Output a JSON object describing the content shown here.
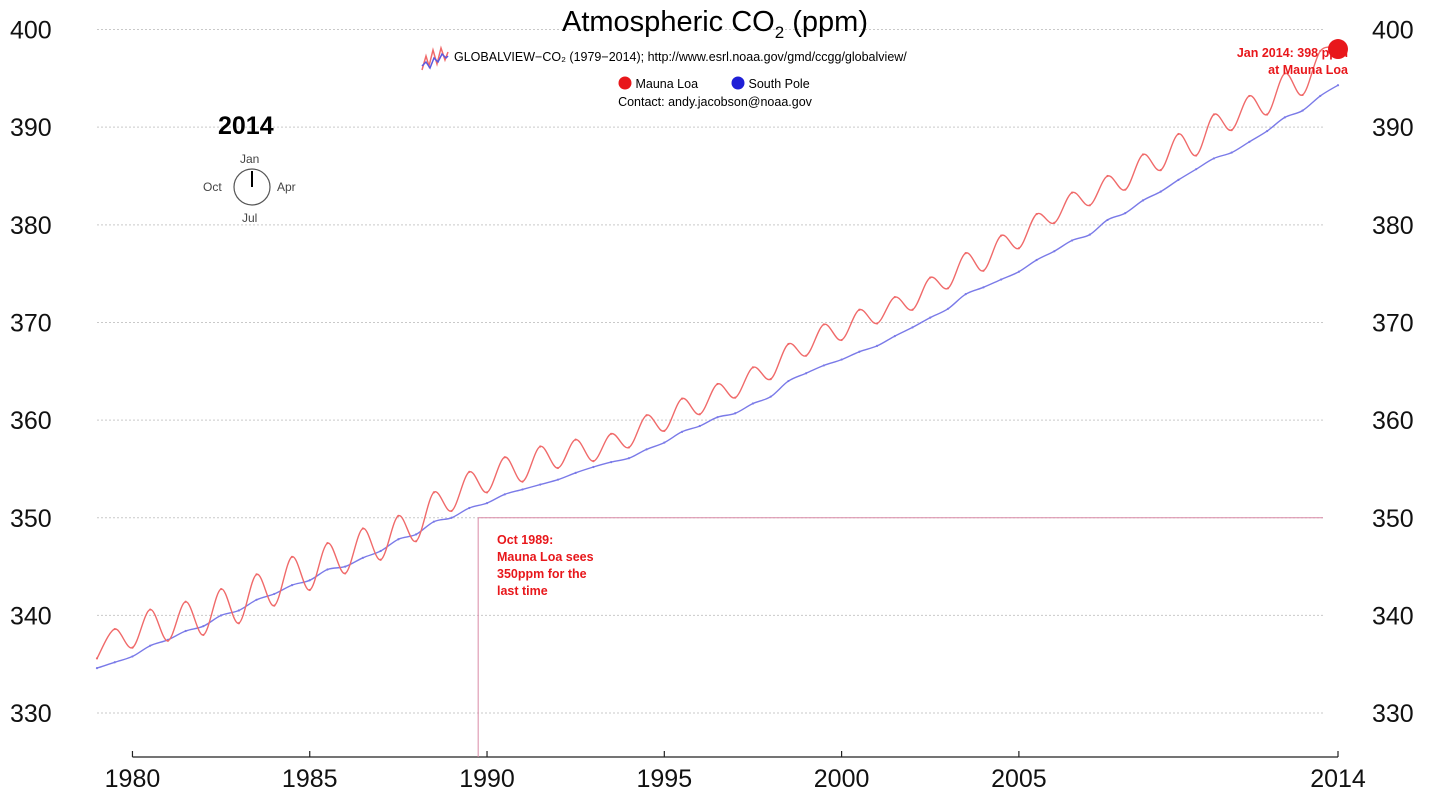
{
  "chart_data": {
    "type": "line",
    "title_prefix": "Atmospheric CO",
    "title_sub": "2",
    "title_suffix": " (ppm)",
    "credit": "GLOBALVIEW−CO₂ (1979−2014); http://www.esrl.noaa.gov/gmd/ccgg/globalview/",
    "contact": "Contact: andy.jacobson@noaa.gov",
    "current_year": "2014",
    "clock_labels": {
      "top": "Jan",
      "right": "Apr",
      "bottom": "Jul",
      "left": "Oct"
    },
    "xlim": [
      1979,
      2014
    ],
    "ylim": [
      325.5,
      402
    ],
    "x_ticks": [
      1980,
      1985,
      1990,
      1995,
      2000,
      2005,
      2014
    ],
    "x_tick_labels": [
      "1980",
      "1985",
      "1990",
      "1995",
      "2000",
      "2005",
      "2014"
    ],
    "y_ticks": [
      330,
      340,
      350,
      360,
      370,
      380,
      390,
      400
    ],
    "y_tick_labels": [
      "330",
      "340",
      "350",
      "360",
      "370",
      "380",
      "390",
      "400"
    ],
    "grid": true,
    "colors": {
      "mauna_loa": "#e8171b",
      "mauna_loa_line": "#f06a6a",
      "south_pole": "#1f1fd6",
      "south_pole_line": "#7a7ae8",
      "annotation": "#e8171b",
      "guide": "#d98aa6"
    },
    "series": [
      {
        "name": "Mauna Loa",
        "x": [
          1979.0,
          1979.5,
          1980.0,
          1980.5,
          1981.0,
          1981.5,
          1982.0,
          1982.5,
          1983.0,
          1983.5,
          1984.0,
          1984.5,
          1985.0,
          1985.5,
          1986.0,
          1986.5,
          1987.0,
          1987.5,
          1988.0,
          1988.5,
          1989.0,
          1989.5,
          1990.0,
          1990.5,
          1991.0,
          1991.5,
          1992.0,
          1992.5,
          1993.0,
          1993.5,
          1994.0,
          1994.5,
          1995.0,
          1995.5,
          1996.0,
          1996.5,
          1997.0,
          1997.5,
          1998.0,
          1998.5,
          1999.0,
          1999.5,
          2000.0,
          2000.5,
          2001.0,
          2001.5,
          2002.0,
          2002.5,
          2003.0,
          2003.5,
          2004.0,
          2004.5,
          2005.0,
          2005.5,
          2006.0,
          2006.5,
          2007.0,
          2007.5,
          2008.0,
          2008.5,
          2009.0,
          2009.5,
          2010.0,
          2010.5,
          2011.0,
          2011.5,
          2012.0,
          2012.5,
          2013.0,
          2013.5,
          2014.0
        ],
        "y": [
          335.6,
          338.6,
          336.7,
          340.6,
          337.4,
          341.4,
          338.0,
          342.7,
          339.2,
          344.2,
          341.0,
          346.0,
          342.6,
          347.4,
          344.3,
          348.9,
          345.7,
          350.2,
          347.6,
          352.6,
          350.7,
          354.7,
          352.6,
          356.2,
          353.7,
          357.3,
          355.1,
          358.0,
          355.8,
          358.6,
          357.2,
          360.5,
          358.9,
          362.2,
          360.6,
          363.7,
          362.3,
          365.4,
          364.2,
          367.8,
          366.6,
          369.8,
          368.2,
          371.3,
          369.9,
          372.6,
          371.3,
          374.6,
          373.5,
          377.1,
          375.3,
          378.9,
          377.6,
          381.1,
          380.2,
          383.3,
          382.0,
          385.0,
          383.6,
          387.2,
          385.6,
          389.3,
          387.1,
          391.3,
          389.7,
          393.2,
          391.3,
          395.5,
          393.3,
          397.8,
          398.0
        ]
      },
      {
        "name": "South Pole",
        "x": [
          1979.0,
          1979.5,
          1980.0,
          1980.5,
          1981.0,
          1981.5,
          1982.0,
          1982.5,
          1983.0,
          1983.5,
          1984.0,
          1984.5,
          1985.0,
          1985.5,
          1986.0,
          1986.5,
          1987.0,
          1987.5,
          1988.0,
          1988.5,
          1989.0,
          1989.5,
          1990.0,
          1990.5,
          1991.0,
          1991.5,
          1992.0,
          1992.5,
          1993.0,
          1993.5,
          1994.0,
          1994.5,
          1995.0,
          1995.5,
          1996.0,
          1996.5,
          1997.0,
          1997.5,
          1998.0,
          1998.5,
          1999.0,
          1999.5,
          2000.0,
          2000.5,
          2001.0,
          2001.5,
          2002.0,
          2002.5,
          2003.0,
          2003.5,
          2004.0,
          2004.5,
          2005.0,
          2005.5,
          2006.0,
          2006.5,
          2007.0,
          2007.5,
          2008.0,
          2008.5,
          2009.0,
          2009.5,
          2010.0,
          2010.5,
          2011.0,
          2011.5,
          2012.0,
          2012.5,
          2013.0,
          2013.5,
          2014.0
        ],
        "y": [
          334.6,
          335.2,
          335.8,
          336.9,
          337.5,
          338.4,
          338.9,
          340.0,
          340.5,
          341.6,
          342.2,
          343.1,
          343.6,
          344.7,
          345.0,
          345.9,
          346.6,
          347.8,
          348.3,
          349.6,
          350.0,
          351.0,
          351.5,
          352.4,
          352.9,
          353.4,
          353.9,
          354.6,
          355.2,
          355.7,
          356.1,
          357.0,
          357.7,
          358.8,
          359.4,
          360.3,
          360.7,
          361.7,
          362.4,
          364.0,
          364.8,
          365.6,
          366.2,
          367.0,
          367.6,
          368.6,
          369.5,
          370.5,
          371.4,
          372.9,
          373.6,
          374.4,
          375.2,
          376.4,
          377.3,
          378.4,
          379.0,
          380.5,
          381.2,
          382.5,
          383.4,
          384.6,
          385.7,
          386.8,
          387.4,
          388.5,
          389.6,
          391.0,
          391.7,
          393.2,
          394.3
        ]
      }
    ],
    "annotations": [
      {
        "id": "end",
        "x": 2014.0,
        "y": 398.0,
        "line1": "Jan 2014: 398 ppm",
        "line2": "at Mauna Loa"
      },
      {
        "id": "oct1989",
        "x": 1989.75,
        "y": 350.0,
        "line1": "Oct 1989:",
        "line2": "Mauna Loa sees",
        "line3": "350ppm for the",
        "line4": "last time"
      }
    ]
  }
}
